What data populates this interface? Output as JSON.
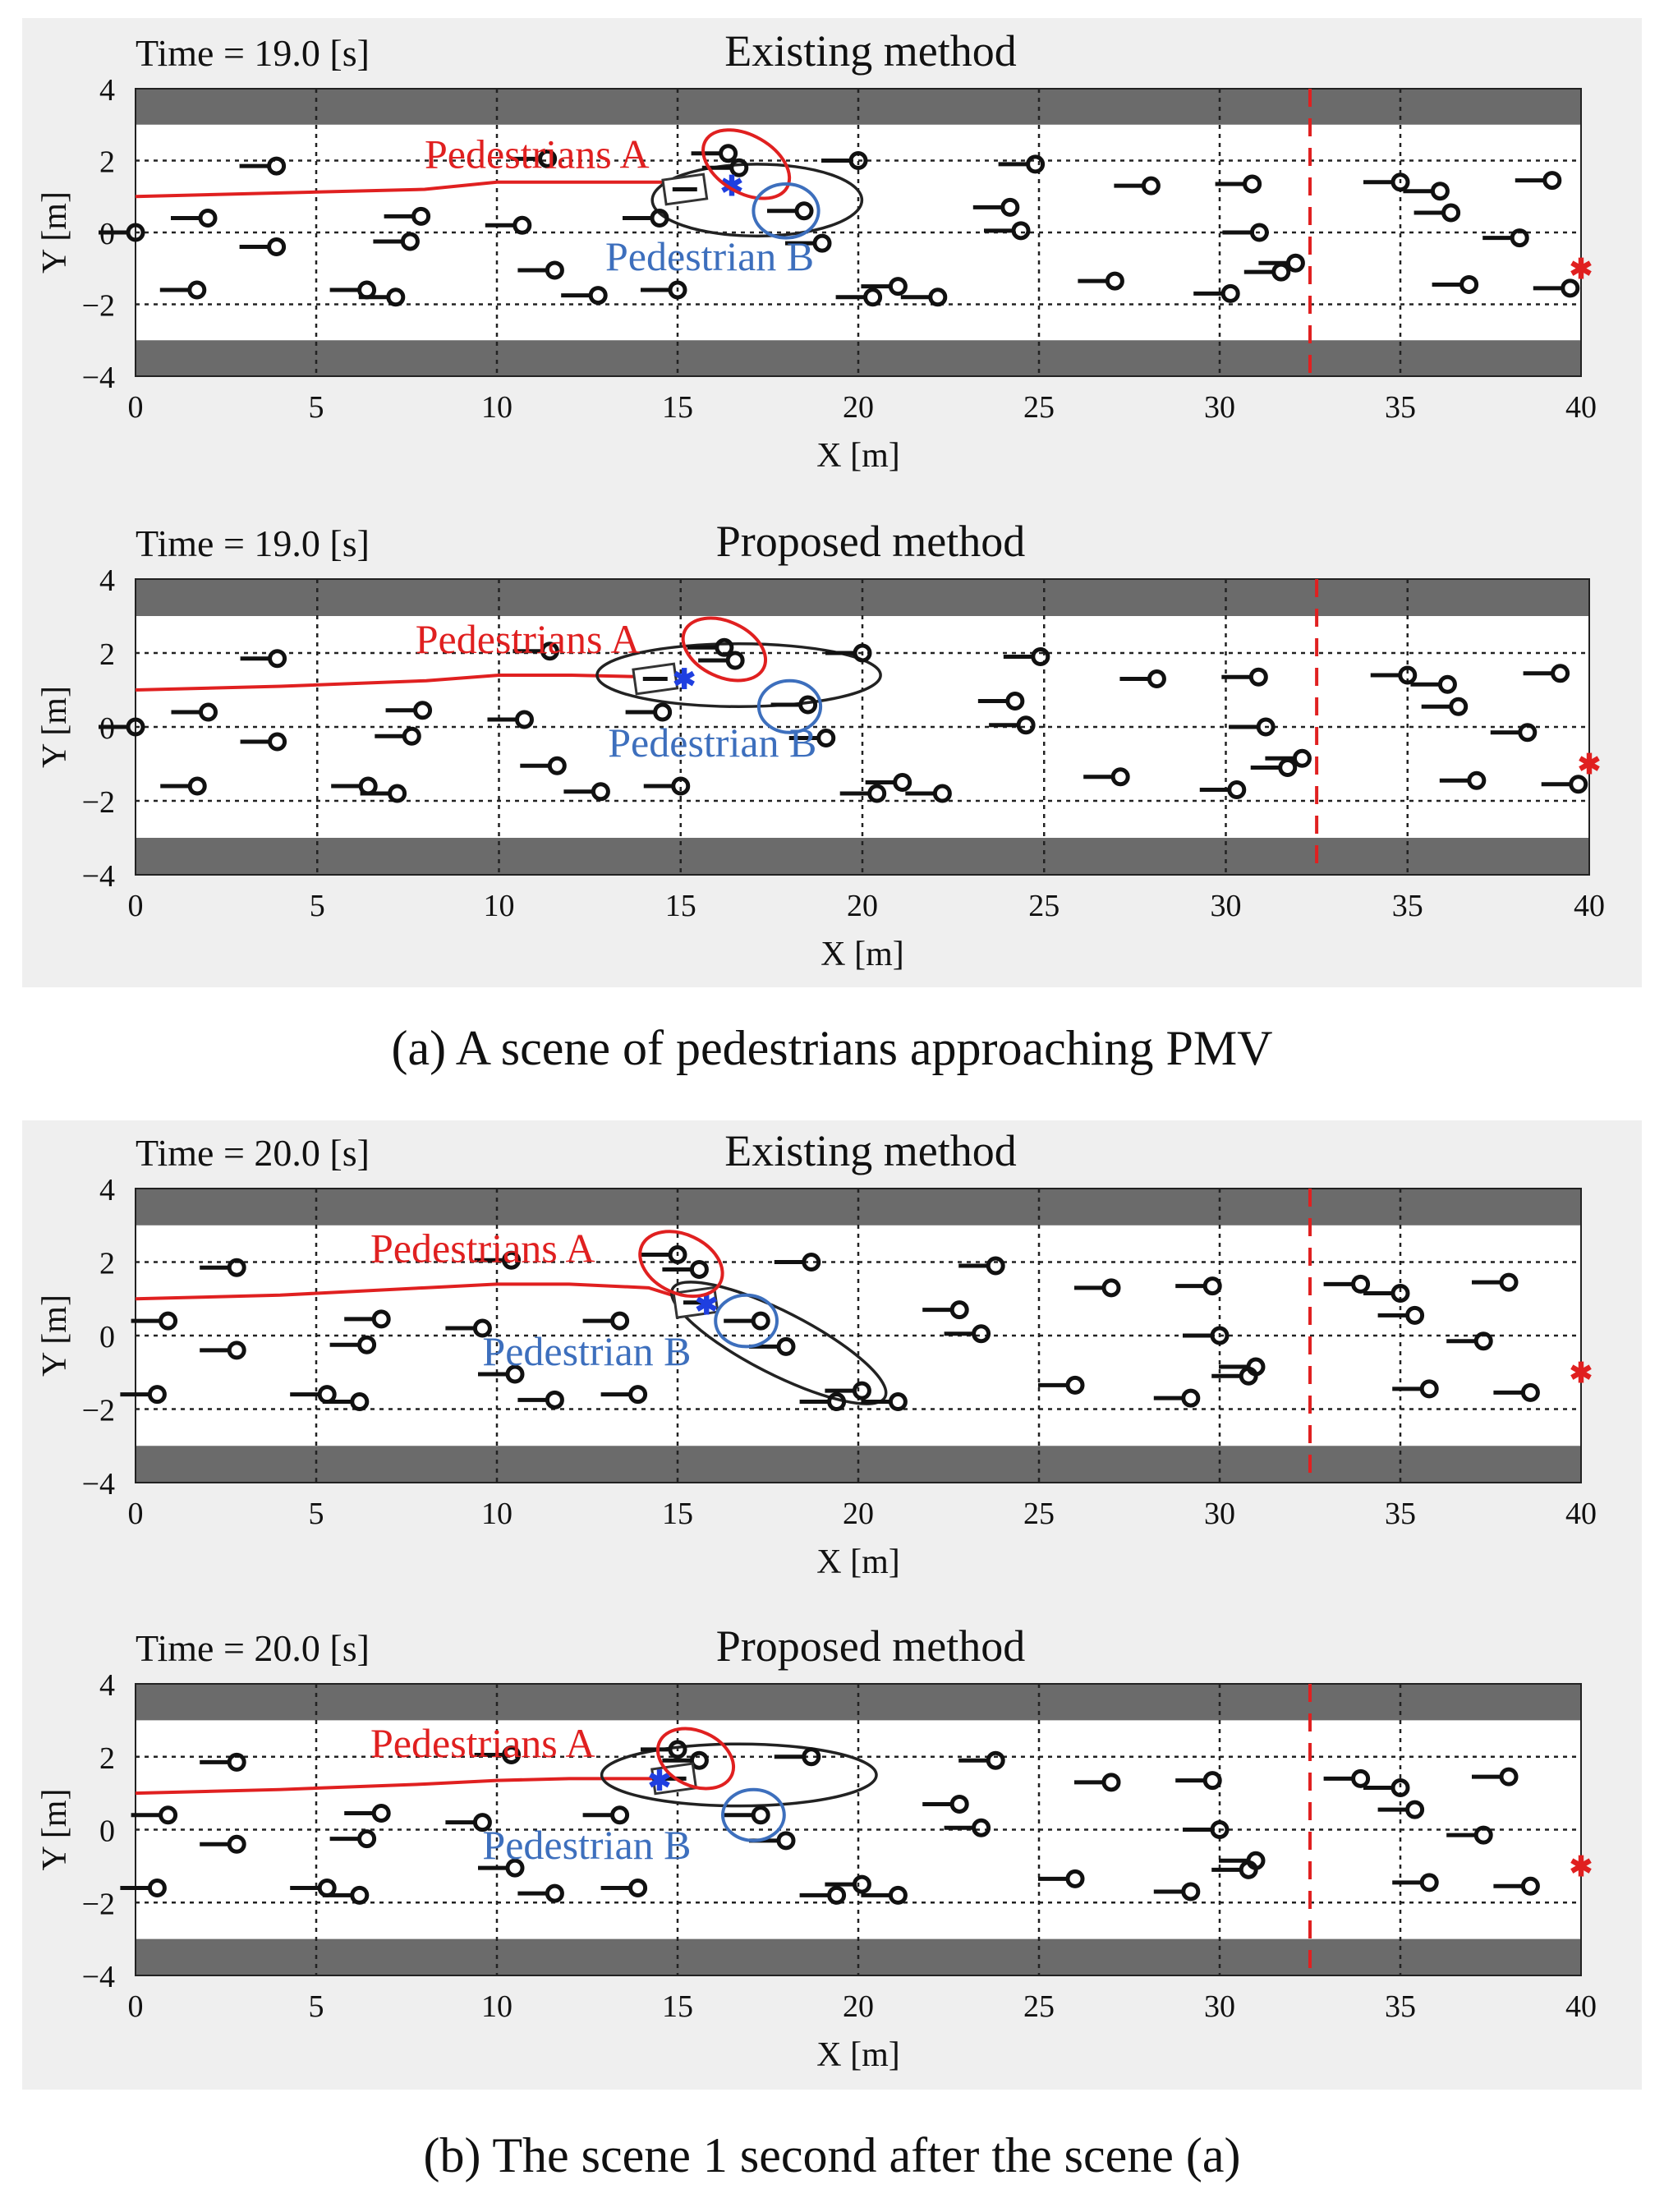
{
  "figure": {
    "caption_a": "(a) A scene of pedestrians approaching PMV",
    "caption_b": "(b) The scene 1 second after the scene (a)"
  },
  "colors": {
    "lane": "#6b6b6b",
    "trajectory": "#e02020",
    "label_a": "#e02020",
    "label_b": "#3d6fbd",
    "marker_goal": "#e02020",
    "marker_pmv": "#1f3fe0"
  },
  "chart_data": [
    {
      "type": "scatter",
      "title": "Existing method",
      "time_label": "Time =  19.0 [s]",
      "xlabel": "X [m]",
      "ylabel": "Y [m]",
      "xlim": [
        0,
        40
      ],
      "ylim": [
        -4,
        4
      ],
      "xticks": [
        0,
        5,
        10,
        15,
        20,
        25,
        30,
        35,
        40
      ],
      "yticks": [
        -4,
        -2,
        0,
        2,
        4
      ],
      "xtick_labels": [
        "0",
        "5",
        "10",
        "15",
        "20",
        "25",
        "30",
        "35",
        "40"
      ],
      "ytick_labels": [
        "−4",
        "−2",
        "0",
        "2",
        "4"
      ],
      "walls": [
        [
          -4,
          -3
        ],
        [
          3,
          4
        ]
      ],
      "boundary_x": 32.5,
      "goal": [
        40,
        -1
      ],
      "pmv": {
        "x": 15.2,
        "y": 1.2,
        "marker": [
          16.5,
          1.3
        ]
      },
      "trajectory": [
        [
          0,
          1.0
        ],
        [
          4,
          1.1
        ],
        [
          8,
          1.2
        ],
        [
          10,
          1.4
        ],
        [
          12,
          1.4
        ],
        [
          14.6,
          1.4
        ],
        [
          15.2,
          1.2
        ]
      ],
      "ellipse": {
        "cx": 17.2,
        "cy": 0.9,
        "rx": 2.9,
        "ry": 1.0,
        "angle": 0
      },
      "label_a": {
        "text": "Pedestrians A",
        "x": 8.0,
        "y": 1.8
      },
      "label_b": {
        "text": "Pedestrian B",
        "x": 13.0,
        "y": -1.05
      },
      "circle_a": {
        "cx": 16.9,
        "cy": 1.9,
        "rx": 1.3,
        "ry": 0.8,
        "angle": 30
      },
      "circle_b": {
        "cx": 18.0,
        "cy": 0.6,
        "rx": 0.9,
        "ry": 0.75,
        "angle": 0
      },
      "pedestrians": [
        [
          0,
          0
        ],
        [
          1.7,
          -1.6
        ],
        [
          2.0,
          0.4
        ],
        [
          3.9,
          1.85
        ],
        [
          3.9,
          -0.4
        ],
        [
          6.4,
          -1.6
        ],
        [
          7.2,
          -1.8
        ],
        [
          7.6,
          -0.25
        ],
        [
          7.9,
          0.45
        ],
        [
          10.7,
          0.2
        ],
        [
          11.4,
          2.05
        ],
        [
          11.6,
          -1.05
        ],
        [
          12.8,
          -1.75
        ],
        [
          14.5,
          0.4
        ],
        [
          15.0,
          -1.6
        ],
        [
          16.4,
          2.2
        ],
        [
          16.7,
          1.8
        ],
        [
          18.5,
          0.6
        ],
        [
          19.0,
          -0.3
        ],
        [
          20.0,
          2.0
        ],
        [
          20.4,
          -1.8
        ],
        [
          21.1,
          -1.5
        ],
        [
          22.2,
          -1.8
        ],
        [
          24.2,
          0.7
        ],
        [
          24.5,
          0.05
        ],
        [
          24.9,
          1.9
        ],
        [
          27.1,
          -1.35
        ],
        [
          28.1,
          1.3
        ],
        [
          30.3,
          -1.7
        ],
        [
          30.9,
          1.35
        ],
        [
          31.1,
          0
        ],
        [
          31.7,
          -1.1
        ],
        [
          32.1,
          -0.85
        ],
        [
          35.0,
          1.4
        ],
        [
          36.1,
          1.15
        ],
        [
          36.4,
          0.55
        ],
        [
          36.9,
          -1.45
        ],
        [
          38.3,
          -0.15
        ],
        [
          39.2,
          1.45
        ],
        [
          39.7,
          -1.55
        ]
      ]
    },
    {
      "type": "scatter",
      "title": "Proposed method",
      "time_label": "Time =  19.0 [s]",
      "xlabel": "X [m]",
      "ylabel": "Y [m]",
      "xlim": [
        0,
        40
      ],
      "ylim": [
        -4,
        4
      ],
      "xticks": [
        0,
        5,
        10,
        15,
        20,
        25,
        30,
        35,
        40
      ],
      "yticks": [
        -4,
        -2,
        0,
        2,
        4
      ],
      "xtick_labels": [
        "0",
        "5",
        "10",
        "15",
        "20",
        "25",
        "30",
        "35",
        "40"
      ],
      "ytick_labels": [
        "−4",
        "−2",
        "0",
        "2",
        "4"
      ],
      "walls": [
        [
          -4,
          -3
        ],
        [
          3,
          4
        ]
      ],
      "boundary_x": 32.5,
      "goal": [
        40,
        -1
      ],
      "pmv": {
        "x": 14.3,
        "y": 1.3,
        "marker": [
          15.1,
          1.3
        ]
      },
      "trajectory": [
        [
          0,
          1.0
        ],
        [
          4,
          1.1
        ],
        [
          8,
          1.25
        ],
        [
          10,
          1.4
        ],
        [
          12,
          1.4
        ],
        [
          14.3,
          1.35
        ]
      ],
      "ellipse": {
        "cx": 16.6,
        "cy": 1.4,
        "rx": 3.9,
        "ry": 0.85,
        "angle": 0
      },
      "label_a": {
        "text": "Pedestrians A",
        "x": 7.7,
        "y": 2.0
      },
      "label_b": {
        "text": "Pedestrian B",
        "x": 13.0,
        "y": -0.8
      },
      "circle_a": {
        "cx": 16.2,
        "cy": 2.1,
        "rx": 1.2,
        "ry": 0.75,
        "angle": 25
      },
      "circle_b": {
        "cx": 18.0,
        "cy": 0.55,
        "rx": 0.85,
        "ry": 0.7,
        "angle": 0
      },
      "pedestrians": [
        [
          0,
          0
        ],
        [
          1.7,
          -1.6
        ],
        [
          2.0,
          0.4
        ],
        [
          3.9,
          1.85
        ],
        [
          3.9,
          -0.4
        ],
        [
          6.4,
          -1.6
        ],
        [
          7.2,
          -1.8
        ],
        [
          7.6,
          -0.25
        ],
        [
          7.9,
          0.45
        ],
        [
          10.7,
          0.2
        ],
        [
          11.4,
          2.05
        ],
        [
          11.6,
          -1.05
        ],
        [
          12.8,
          -1.75
        ],
        [
          14.5,
          0.4
        ],
        [
          15.0,
          -1.6
        ],
        [
          16.2,
          2.15
        ],
        [
          16.5,
          1.8
        ],
        [
          18.5,
          0.6
        ],
        [
          19.0,
          -0.3
        ],
        [
          20.0,
          2.0
        ],
        [
          20.4,
          -1.8
        ],
        [
          21.1,
          -1.5
        ],
        [
          22.2,
          -1.8
        ],
        [
          24.2,
          0.7
        ],
        [
          24.5,
          0.05
        ],
        [
          24.9,
          1.9
        ],
        [
          27.1,
          -1.35
        ],
        [
          28.1,
          1.3
        ],
        [
          30.3,
          -1.7
        ],
        [
          30.9,
          1.35
        ],
        [
          31.1,
          0
        ],
        [
          31.7,
          -1.1
        ],
        [
          32.1,
          -0.85
        ],
        [
          35.0,
          1.4
        ],
        [
          36.1,
          1.15
        ],
        [
          36.4,
          0.55
        ],
        [
          36.9,
          -1.45
        ],
        [
          38.3,
          -0.15
        ],
        [
          39.2,
          1.45
        ],
        [
          39.7,
          -1.55
        ]
      ]
    },
    {
      "type": "scatter",
      "title": "Existing method",
      "time_label": "Time =  20.0 [s]",
      "xlabel": "X [m]",
      "ylabel": "Y [m]",
      "xlim": [
        0,
        40
      ],
      "ylim": [
        -4,
        4
      ],
      "xticks": [
        0,
        5,
        10,
        15,
        20,
        25,
        30,
        35,
        40
      ],
      "yticks": [
        -4,
        -2,
        0,
        2,
        4
      ],
      "xtick_labels": [
        "0",
        "5",
        "10",
        "15",
        "20",
        "25",
        "30",
        "35",
        "40"
      ],
      "ytick_labels": [
        "−4",
        "−2",
        "0",
        "2",
        "4"
      ],
      "walls": [
        [
          -4,
          -3
        ],
        [
          3,
          4
        ]
      ],
      "boundary_x": 32.5,
      "goal": [
        40,
        -1
      ],
      "pmv": {
        "x": 15.5,
        "y": 0.9,
        "marker": [
          15.8,
          0.85
        ]
      },
      "trajectory": [
        [
          0,
          1.0
        ],
        [
          4,
          1.1
        ],
        [
          8,
          1.3
        ],
        [
          10,
          1.4
        ],
        [
          12,
          1.4
        ],
        [
          14.2,
          1.3
        ],
        [
          15.5,
          0.9
        ]
      ],
      "ellipse": {
        "cx": 17.8,
        "cy": -0.2,
        "rx": 3.3,
        "ry": 0.85,
        "angle": 27
      },
      "label_a": {
        "text": "Pedestrians A",
        "x": 6.5,
        "y": 2.0
      },
      "label_b": {
        "text": "Pedestrian B",
        "x": 9.6,
        "y": -0.8
      },
      "circle_a": {
        "cx": 15.1,
        "cy": 1.95,
        "rx": 1.2,
        "ry": 0.8,
        "angle": 25
      },
      "circle_b": {
        "cx": 16.9,
        "cy": 0.4,
        "rx": 0.85,
        "ry": 0.7,
        "angle": 0
      },
      "pedestrians": [
        [
          0.6,
          -1.6
        ],
        [
          0.9,
          0.4
        ],
        [
          2.8,
          1.85
        ],
        [
          2.8,
          -0.4
        ],
        [
          5.3,
          -1.6
        ],
        [
          6.2,
          -1.8
        ],
        [
          6.4,
          -0.25
        ],
        [
          6.8,
          0.45
        ],
        [
          9.6,
          0.2
        ],
        [
          10.4,
          2.05
        ],
        [
          10.5,
          -1.05
        ],
        [
          11.6,
          -1.75
        ],
        [
          13.4,
          0.4
        ],
        [
          13.9,
          -1.6
        ],
        [
          15.0,
          2.2
        ],
        [
          15.6,
          1.8
        ],
        [
          17.3,
          0.4
        ],
        [
          18.0,
          -0.3
        ],
        [
          18.7,
          2.0
        ],
        [
          19.4,
          -1.8
        ],
        [
          20.1,
          -1.5
        ],
        [
          21.1,
          -1.8
        ],
        [
          22.8,
          0.7
        ],
        [
          23.4,
          0.05
        ],
        [
          23.8,
          1.9
        ],
        [
          26.0,
          -1.35
        ],
        [
          27.0,
          1.3
        ],
        [
          29.2,
          -1.7
        ],
        [
          29.8,
          1.35
        ],
        [
          30.0,
          0
        ],
        [
          30.8,
          -1.1
        ],
        [
          31.0,
          -0.85
        ],
        [
          33.9,
          1.4
        ],
        [
          35.0,
          1.15
        ],
        [
          35.4,
          0.55
        ],
        [
          35.8,
          -1.45
        ],
        [
          37.3,
          -0.15
        ],
        [
          38.0,
          1.45
        ],
        [
          38.6,
          -1.55
        ]
      ]
    },
    {
      "type": "scatter",
      "title": "Proposed method",
      "time_label": "Time =  20.0 [s]",
      "xlabel": "X [m]",
      "ylabel": "Y [m]",
      "xlim": [
        0,
        40
      ],
      "ylim": [
        -4,
        4
      ],
      "xticks": [
        0,
        5,
        10,
        15,
        20,
        25,
        30,
        35,
        40
      ],
      "yticks": [
        -4,
        -2,
        0,
        2,
        4
      ],
      "xtick_labels": [
        "0",
        "5",
        "10",
        "15",
        "20",
        "25",
        "30",
        "35",
        "40"
      ],
      "ytick_labels": [
        "−4",
        "−2",
        "0",
        "2",
        "4"
      ],
      "walls": [
        [
          -4,
          -3
        ],
        [
          3,
          4
        ]
      ],
      "boundary_x": 32.5,
      "goal": [
        40,
        -1
      ],
      "pmv": {
        "x": 14.9,
        "y": 1.4,
        "marker": [
          14.5,
          1.35
        ]
      },
      "trajectory": [
        [
          0,
          1.0
        ],
        [
          4,
          1.1
        ],
        [
          8,
          1.25
        ],
        [
          10,
          1.35
        ],
        [
          12,
          1.4
        ],
        [
          14.5,
          1.4
        ]
      ],
      "ellipse": {
        "cx": 16.7,
        "cy": 1.5,
        "rx": 3.8,
        "ry": 0.85,
        "angle": 0
      },
      "label_a": {
        "text": "Pedestrians A",
        "x": 6.5,
        "y": 2.0
      },
      "label_b": {
        "text": "Pedestrian B",
        "x": 9.6,
        "y": -0.8
      },
      "circle_a": {
        "cx": 15.5,
        "cy": 1.95,
        "rx": 1.1,
        "ry": 0.75,
        "angle": 25
      },
      "circle_b": {
        "cx": 17.1,
        "cy": 0.4,
        "rx": 0.85,
        "ry": 0.7,
        "angle": 0
      },
      "pedestrians": [
        [
          0.6,
          -1.6
        ],
        [
          0.9,
          0.4
        ],
        [
          2.8,
          1.85
        ],
        [
          2.8,
          -0.4
        ],
        [
          5.3,
          -1.6
        ],
        [
          6.2,
          -1.8
        ],
        [
          6.4,
          -0.25
        ],
        [
          6.8,
          0.45
        ],
        [
          9.6,
          0.2
        ],
        [
          10.4,
          2.05
        ],
        [
          10.5,
          -1.05
        ],
        [
          11.6,
          -1.75
        ],
        [
          13.4,
          0.4
        ],
        [
          13.9,
          -1.6
        ],
        [
          15.0,
          2.2
        ],
        [
          15.6,
          1.9
        ],
        [
          17.3,
          0.4
        ],
        [
          18.0,
          -0.3
        ],
        [
          18.7,
          2.0
        ],
        [
          19.4,
          -1.8
        ],
        [
          20.1,
          -1.5
        ],
        [
          21.1,
          -1.8
        ],
        [
          22.8,
          0.7
        ],
        [
          23.4,
          0.05
        ],
        [
          23.8,
          1.9
        ],
        [
          26.0,
          -1.35
        ],
        [
          27.0,
          1.3
        ],
        [
          29.2,
          -1.7
        ],
        [
          29.8,
          1.35
        ],
        [
          30.0,
          0
        ],
        [
          30.8,
          -1.1
        ],
        [
          31.0,
          -0.85
        ],
        [
          33.9,
          1.4
        ],
        [
          35.0,
          1.15
        ],
        [
          35.4,
          0.55
        ],
        [
          35.8,
          -1.45
        ],
        [
          37.3,
          -0.15
        ],
        [
          38.0,
          1.45
        ],
        [
          38.6,
          -1.55
        ]
      ]
    }
  ]
}
